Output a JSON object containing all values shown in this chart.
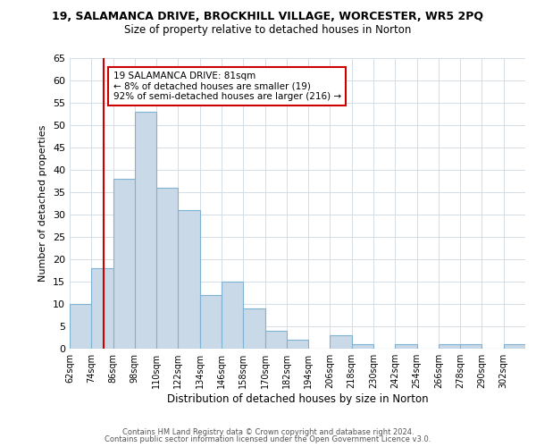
{
  "title": "19, SALAMANCA DRIVE, BROCKHILL VILLAGE, WORCESTER, WR5 2PQ",
  "subtitle": "Size of property relative to detached houses in Norton",
  "xlabel": "Distribution of detached houses by size in Norton",
  "ylabel": "Number of detached properties",
  "bin_labels": [
    "62sqm",
    "74sqm",
    "86sqm",
    "98sqm",
    "110sqm",
    "122sqm",
    "134sqm",
    "146sqm",
    "158sqm",
    "170sqm",
    "182sqm",
    "194sqm",
    "206sqm",
    "218sqm",
    "230sqm",
    "242sqm",
    "254sqm",
    "266sqm",
    "278sqm",
    "290sqm",
    "302sqm"
  ],
  "bar_heights": [
    10,
    18,
    38,
    53,
    36,
    31,
    12,
    15,
    9,
    4,
    2,
    0,
    3,
    1,
    0,
    1,
    0,
    1,
    1,
    0,
    1
  ],
  "bar_color": "#c9d9e8",
  "bar_edgecolor": "#7fb3d3",
  "reference_line_x": 81,
  "bin_edges_values": [
    62,
    74,
    86,
    98,
    110,
    122,
    134,
    146,
    158,
    170,
    182,
    194,
    206,
    218,
    230,
    242,
    254,
    266,
    278,
    290,
    302,
    314
  ],
  "annotation_text": "19 SALAMANCA DRIVE: 81sqm\n← 8% of detached houses are smaller (19)\n92% of semi-detached houses are larger (216) →",
  "annotation_box_color": "#ffffff",
  "annotation_box_edgecolor": "#cc0000",
  "vline_color": "#cc0000",
  "ylim": [
    0,
    65
  ],
  "yticks": [
    0,
    5,
    10,
    15,
    20,
    25,
    30,
    35,
    40,
    45,
    50,
    55,
    60,
    65
  ],
  "footer_line1": "Contains HM Land Registry data © Crown copyright and database right 2024.",
  "footer_line2": "Contains public sector information licensed under the Open Government Licence v3.0.",
  "background_color": "#ffffff",
  "grid_color": "#d4dde5"
}
